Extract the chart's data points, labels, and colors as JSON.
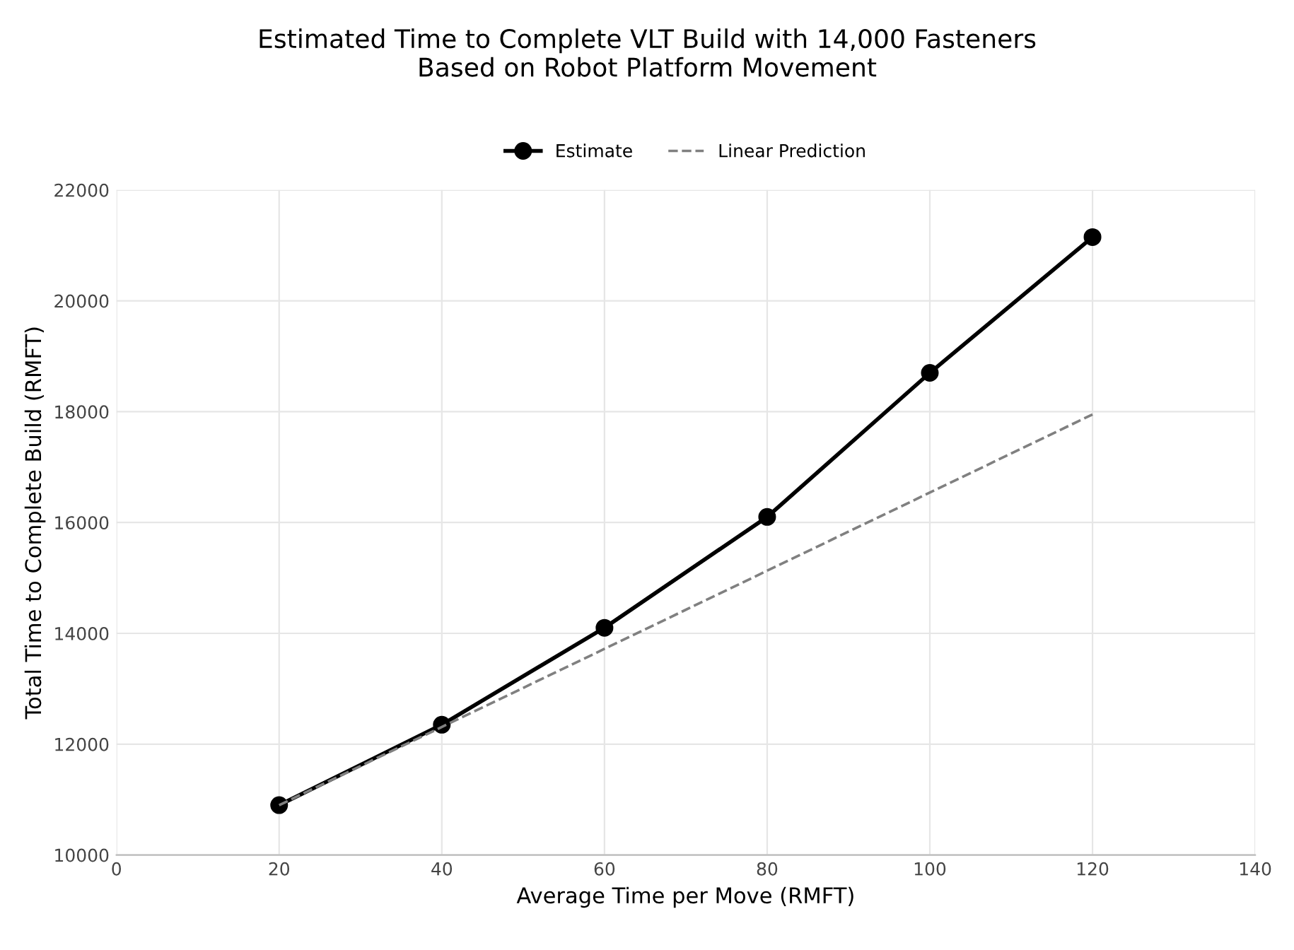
{
  "chart_data": {
    "type": "line",
    "title": "Estimated Time to Complete VLT Build with 14,000 Fasteners\nBased on Robot Platform Movement",
    "xlabel": "Average Time per Move (RMFT)",
    "ylabel": "Total Time to Complete Build (RMFT)",
    "x": [
      20,
      40,
      60,
      80,
      100,
      120
    ],
    "series": [
      {
        "name": "Estimate",
        "color": "#000000",
        "values": [
          10900,
          12350,
          14100,
          16100,
          18700,
          21150
        ],
        "marker": "circle",
        "line_style": "solid"
      },
      {
        "name": "Linear Prediction",
        "color": "#808080",
        "x": [
          20,
          120
        ],
        "values": [
          10900,
          17950
        ],
        "marker": "none",
        "line_style": "dashed"
      }
    ],
    "xlim": [
      0,
      140
    ],
    "xticks": [
      0,
      20,
      40,
      60,
      80,
      100,
      120,
      140
    ],
    "ylim": [
      10000,
      22000
    ],
    "yticks": [
      10000,
      12000,
      14000,
      16000,
      18000,
      20000,
      22000
    ],
    "grid": true,
    "legend": "top"
  }
}
